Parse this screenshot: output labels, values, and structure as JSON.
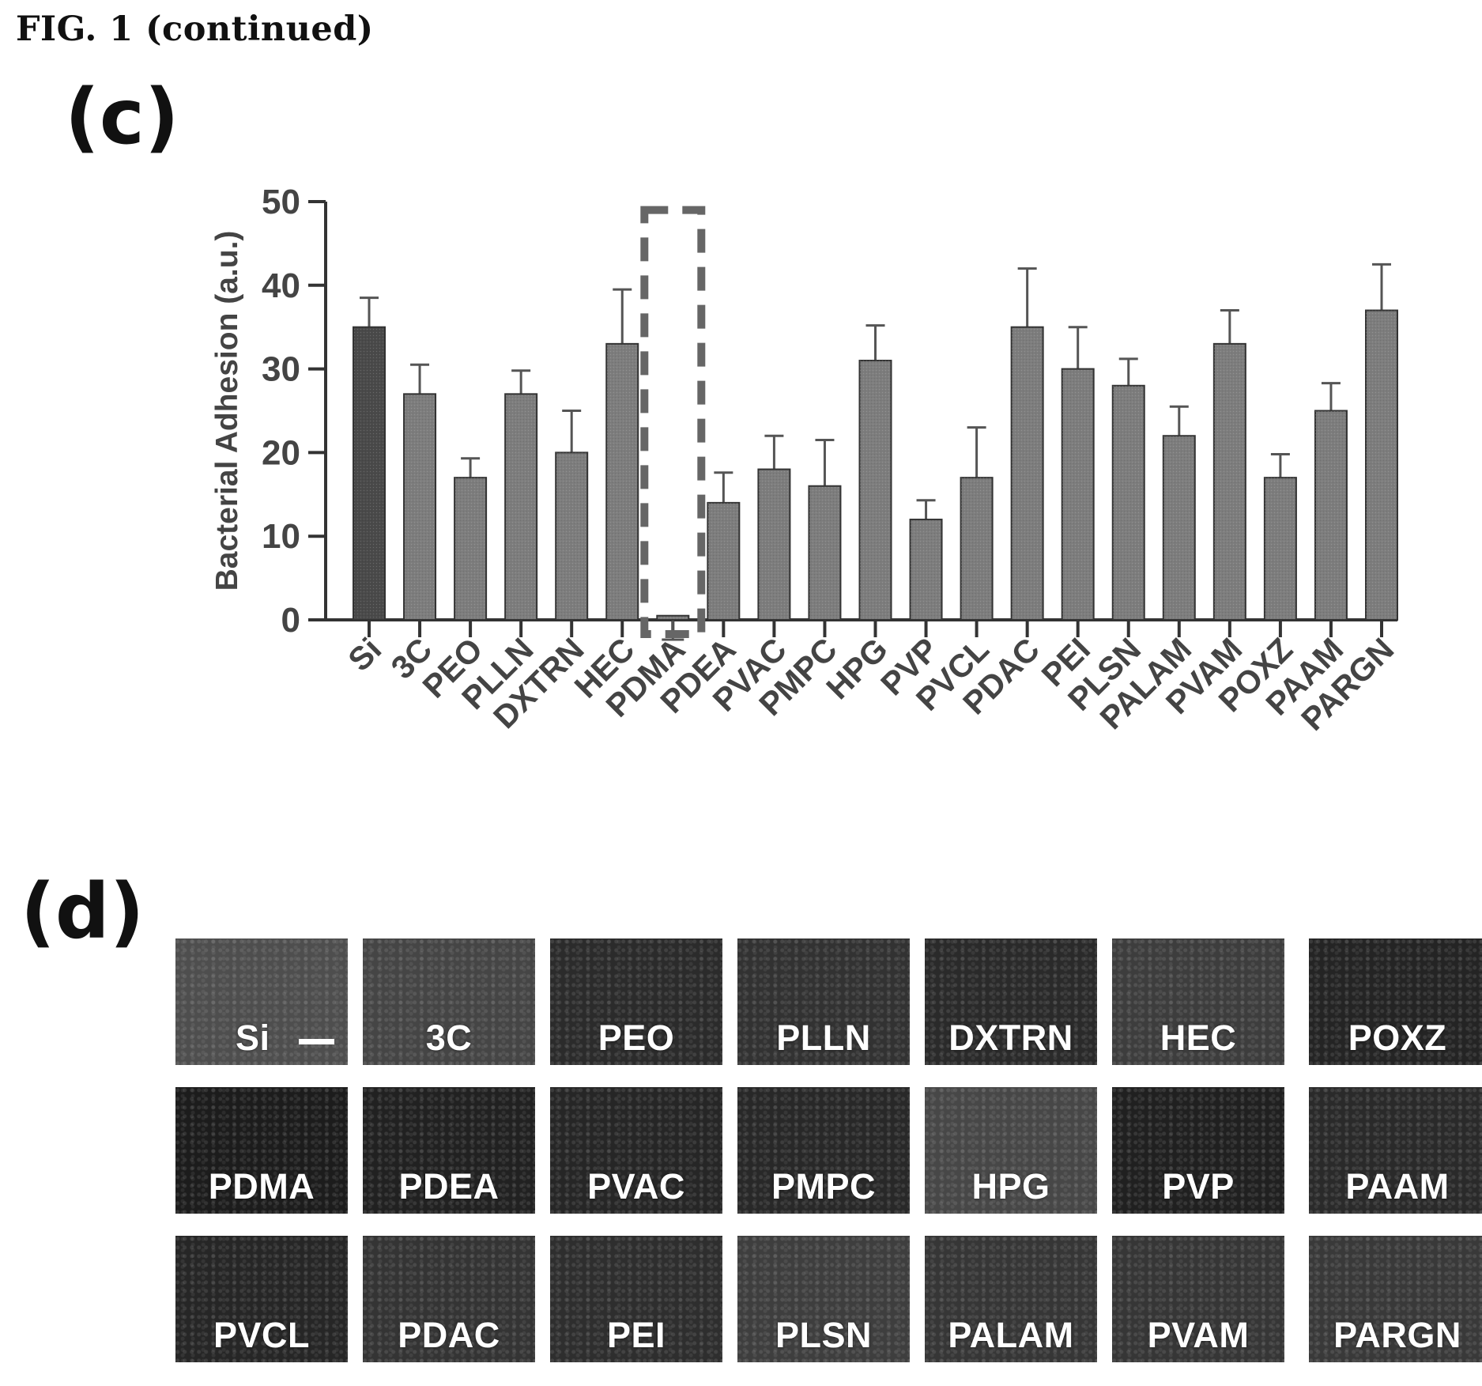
{
  "figure_title": "FIG. 1 (continued)",
  "panel_c_label": "(c)",
  "panel_d_label": "(d)",
  "colors": {
    "bar_first": "#4a4a4a",
    "bar": "#7d7d7d",
    "highlight": "#666666",
    "axis": "#333333"
  },
  "chart_data": {
    "type": "bar",
    "ylabel": "Bacterial Adhesion (a.u.)",
    "ylim": [
      0,
      50
    ],
    "yticks": [
      0,
      10,
      20,
      30,
      40,
      50
    ],
    "categories": [
      "Si",
      "3C",
      "PEO",
      "PLLN",
      "DXTRN",
      "HEC",
      "PDMA",
      "PDEA",
      "PVAC",
      "PMPC",
      "HPG",
      "PVP",
      "PVCL",
      "PDAC",
      "PEI",
      "PLSN",
      "PALAM",
      "PVAM",
      "POXZ",
      "PAAM",
      "PARGN"
    ],
    "values": [
      35,
      27,
      17,
      27,
      20,
      33,
      0.5,
      14,
      18,
      16,
      31,
      12,
      17,
      35,
      30,
      28,
      22,
      33,
      17,
      25,
      37
    ],
    "errors": [
      3.5,
      3.5,
      2.3,
      2.8,
      5,
      6.5,
      2.5,
      3.6,
      4,
      5.5,
      4.2,
      2.3,
      6,
      7,
      5,
      3.2,
      3.5,
      4,
      2.8,
      3.3,
      5.5
    ],
    "highlighted_category": "PDMA"
  },
  "micrographs": {
    "rows": [
      [
        {
          "label": "Si",
          "tone": "#4e4e4e"
        },
        {
          "label": "3C",
          "tone": "#454545"
        },
        {
          "label": "PEO",
          "tone": "#2b2b2b"
        },
        {
          "label": "PLLN",
          "tone": "#323232"
        },
        {
          "label": "DXTRN",
          "tone": "#2a2a2a"
        },
        {
          "label": "HEC",
          "tone": "#3d3d3d"
        },
        {
          "label": "POXZ",
          "tone": "#242424"
        }
      ],
      [
        {
          "label": "PDMA",
          "tone": "#1c1c1c"
        },
        {
          "label": "PDEA",
          "tone": "#212121"
        },
        {
          "label": "PVAC",
          "tone": "#262626"
        },
        {
          "label": "PMPC",
          "tone": "#282828"
        },
        {
          "label": "HPG",
          "tone": "#474747"
        },
        {
          "label": "PVP",
          "tone": "#202020"
        },
        {
          "label": "PAAM",
          "tone": "#2a2a2a"
        }
      ],
      [
        {
          "label": "PVCL",
          "tone": "#262626"
        },
        {
          "label": "PDAC",
          "tone": "#343434"
        },
        {
          "label": "PEI",
          "tone": "#2e2e2e"
        },
        {
          "label": "PLSN",
          "tone": "#3e3e3e"
        },
        {
          "label": "PALAM",
          "tone": "#363636"
        },
        {
          "label": "PVAM",
          "tone": "#363636"
        },
        {
          "label": "PARGN",
          "tone": "#393939"
        }
      ]
    ]
  }
}
